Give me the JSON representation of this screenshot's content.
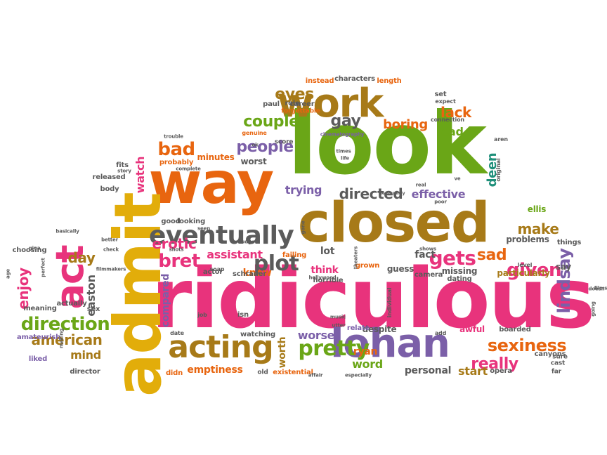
{
  "palette": {
    "orange": "#e8650f",
    "green": "#6aa617",
    "pink": "#e8337c",
    "purple": "#7b5fa8",
    "gold": "#e2ad0a",
    "brown": "#a77a18",
    "grey": "#5b5b5b",
    "teal": "#1f8f7a",
    "red": "#c9341c"
  },
  "words": [
    {
      "text": "ridiculous",
      "color": "pink",
      "size": 118,
      "rot": 0
    },
    {
      "text": "look",
      "color": "green",
      "size": 122,
      "rot": 0
    },
    {
      "text": "closed",
      "color": "brown",
      "size": 78,
      "rot": 0
    },
    {
      "text": "way",
      "color": "orange",
      "size": 82,
      "rot": 0
    },
    {
      "text": "admit",
      "color": "gold",
      "size": 92,
      "rot": -90
    },
    {
      "text": "work",
      "color": "brown",
      "size": 56,
      "rot": 0
    },
    {
      "text": "lohan",
      "color": "purple",
      "size": 56,
      "rot": 0
    },
    {
      "text": "acting",
      "color": "brown",
      "size": 44,
      "rot": 0
    },
    {
      "text": "act",
      "color": "pink",
      "size": 54,
      "rot": -90
    },
    {
      "text": "eventually",
      "color": "grey",
      "size": 36,
      "rot": 0
    },
    {
      "text": "pretty",
      "color": "green",
      "size": 30,
      "rot": 0
    },
    {
      "text": "direction",
      "color": "green",
      "size": 26,
      "rot": 0
    },
    {
      "text": "sexiness",
      "color": "orange",
      "size": 24,
      "rot": 0
    },
    {
      "text": "lindsay",
      "color": "purple",
      "size": 24,
      "rot": -90
    },
    {
      "text": "plot",
      "color": "grey",
      "size": 30,
      "rot": 0
    },
    {
      "text": "bret",
      "color": "pink",
      "size": 26,
      "rot": 0
    },
    {
      "text": "gets",
      "color": "pink",
      "size": 28,
      "rot": 0
    },
    {
      "text": "given",
      "color": "pink",
      "size": 26,
      "rot": 0
    },
    {
      "text": "directed",
      "color": "grey",
      "size": 20,
      "rot": 0
    },
    {
      "text": "people",
      "color": "purple",
      "size": 22,
      "rot": 0
    },
    {
      "text": "couple",
      "color": "green",
      "size": 22,
      "rot": 0
    },
    {
      "text": "bad",
      "color": "orange",
      "size": 26,
      "rot": 0
    },
    {
      "text": "gay",
      "color": "grey",
      "size": 22,
      "rot": 0
    },
    {
      "text": "eyes",
      "color": "brown",
      "size": 22,
      "rot": 0
    },
    {
      "text": "boring",
      "color": "orange",
      "size": 18,
      "rot": 0
    },
    {
      "text": "lack",
      "color": "orange",
      "size": 20,
      "rot": 0
    },
    {
      "text": "lead",
      "color": "green",
      "size": 16,
      "rot": 0
    },
    {
      "text": "make",
      "color": "brown",
      "size": 20,
      "rot": 0
    },
    {
      "text": "sad",
      "color": "orange",
      "size": 22,
      "rot": 0
    },
    {
      "text": "really",
      "color": "pink",
      "size": 22,
      "rot": 0
    },
    {
      "text": "american",
      "color": "brown",
      "size": 20,
      "rot": 0
    },
    {
      "text": "enjoy",
      "color": "pink",
      "size": 20,
      "rot": -90
    },
    {
      "text": "day",
      "color": "brown",
      "size": 20,
      "rot": 0
    },
    {
      "text": "erotic",
      "color": "pink",
      "size": 20,
      "rot": 0
    },
    {
      "text": "assistant",
      "color": "pink",
      "size": 16,
      "rot": 0
    },
    {
      "text": "trying",
      "color": "purple",
      "size": 16,
      "rot": 0
    },
    {
      "text": "effective",
      "color": "purple",
      "size": 16,
      "rot": 0
    },
    {
      "text": "deen",
      "color": "teal",
      "size": 18,
      "rot": -90
    },
    {
      "text": "worse",
      "color": "purple",
      "size": 16,
      "rot": 0
    },
    {
      "text": "word",
      "color": "green",
      "size": 16,
      "rot": 0
    },
    {
      "text": "start",
      "color": "brown",
      "size": 16,
      "rot": 0
    },
    {
      "text": "fact",
      "color": "grey",
      "size": 14,
      "rot": 0
    },
    {
      "text": "lot",
      "color": "grey",
      "size": 14,
      "rot": 0
    },
    {
      "text": "think",
      "color": "pink",
      "size": 14,
      "rot": 0
    },
    {
      "text": "know",
      "color": "orange",
      "size": 14,
      "rot": 0
    },
    {
      "text": "mind",
      "color": "brown",
      "size": 16,
      "rot": 0
    },
    {
      "text": "easton",
      "color": "grey",
      "size": 16,
      "rot": -90
    },
    {
      "text": "watch",
      "color": "pink",
      "size": 16,
      "rot": -90
    },
    {
      "text": "worth",
      "color": "brown",
      "size": 14,
      "rot": -90
    },
    {
      "text": "compared",
      "color": "purple",
      "size": 14,
      "rot": -90
    },
    {
      "text": "emptiness",
      "color": "orange",
      "size": 14,
      "rot": 0
    },
    {
      "text": "ryan",
      "color": "orange",
      "size": 14,
      "rot": 0
    },
    {
      "text": "personal",
      "color": "grey",
      "size": 14,
      "rot": 0
    },
    {
      "text": "problems",
      "color": "grey",
      "size": 12,
      "rot": 0
    },
    {
      "text": "particularly",
      "color": "brown",
      "size": 12,
      "rot": 0
    },
    {
      "text": "guess",
      "color": "grey",
      "size": 12,
      "rot": 0
    },
    {
      "text": "missing",
      "color": "grey",
      "size": 12,
      "rot": 0
    },
    {
      "text": "minutes",
      "color": "orange",
      "size": 12,
      "rot": 0
    },
    {
      "text": "worst",
      "color": "grey",
      "size": 12,
      "rot": 0
    },
    {
      "text": "ellis",
      "color": "green",
      "size": 12,
      "rot": 0
    },
    {
      "text": "things",
      "color": "grey",
      "size": 10,
      "rot": 0
    },
    {
      "text": "say",
      "color": "grey",
      "size": 12,
      "rot": 0
    },
    {
      "text": "despite",
      "color": "grey",
      "size": 12,
      "rot": 0
    },
    {
      "text": "awful",
      "color": "pink",
      "size": 12,
      "rot": 0
    },
    {
      "text": "boarded",
      "color": "grey",
      "size": 10,
      "rot": 0
    },
    {
      "text": "canyons",
      "color": "grey",
      "size": 10,
      "rot": 0
    },
    {
      "text": "opera",
      "color": "grey",
      "size": 10,
      "rot": 0
    },
    {
      "text": "watching",
      "color": "grey",
      "size": 10,
      "rot": 0
    },
    {
      "text": "existential",
      "color": "orange",
      "size": 10,
      "rot": 0
    },
    {
      "text": "schrader",
      "color": "grey",
      "size": 10,
      "rot": 0
    },
    {
      "text": "actor",
      "color": "grey",
      "size": 10,
      "rot": 0
    },
    {
      "text": "failing",
      "color": "orange",
      "size": 10,
      "rot": 0
    },
    {
      "text": "released",
      "color": "grey",
      "size": 10,
      "rot": 0
    },
    {
      "text": "probably",
      "color": "orange",
      "size": 10,
      "rot": 0
    },
    {
      "text": "body",
      "color": "grey",
      "size": 10,
      "rot": 0
    },
    {
      "text": "fits",
      "color": "grey",
      "size": 10,
      "rot": 0
    },
    {
      "text": "good",
      "color": "grey",
      "size": 10,
      "rot": 0
    },
    {
      "text": "looking",
      "color": "grey",
      "size": 10,
      "rot": 0
    },
    {
      "text": "actually",
      "color": "grey",
      "size": 10,
      "rot": 0
    },
    {
      "text": "sex",
      "color": "grey",
      "size": 10,
      "rot": 0
    },
    {
      "text": "meaning",
      "color": "grey",
      "size": 10,
      "rot": 0
    },
    {
      "text": "choosing",
      "color": "grey",
      "size": 10,
      "rot": 0
    },
    {
      "text": "amateurish",
      "color": "purple",
      "size": 10,
      "rot": 0
    },
    {
      "text": "liked",
      "color": "purple",
      "size": 10,
      "rot": 0
    },
    {
      "text": "director",
      "color": "grey",
      "size": 10,
      "rot": 0
    },
    {
      "text": "didn",
      "color": "orange",
      "size": 10,
      "rot": 0
    },
    {
      "text": "old",
      "color": "grey",
      "size": 9,
      "rot": 0
    },
    {
      "text": "camera",
      "color": "grey",
      "size": 10,
      "rot": 0
    },
    {
      "text": "dating",
      "color": "grey",
      "size": 10,
      "rot": 0
    },
    {
      "text": "horrible",
      "color": "grey",
      "size": 10,
      "rot": 0
    },
    {
      "text": "grown",
      "color": "orange",
      "size": 10,
      "rot": 0
    },
    {
      "text": "relate",
      "color": "purple",
      "size": 10,
      "rot": 0
    },
    {
      "text": "isn",
      "color": "grey",
      "size": 10,
      "rot": 0
    },
    {
      "text": "role",
      "color": "grey",
      "size": 10,
      "rot": 0
    },
    {
      "text": "paul",
      "color": "grey",
      "size": 10,
      "rot": 0
    },
    {
      "text": "career",
      "color": "grey",
      "size": 10,
      "rot": 0
    },
    {
      "text": "forgettable",
      "color": "orange",
      "size": 9,
      "rot": 0
    },
    {
      "text": "instead",
      "color": "orange",
      "size": 10,
      "rot": 0
    },
    {
      "text": "characters",
      "color": "grey",
      "size": 10,
      "rot": 0
    },
    {
      "text": "length",
      "color": "orange",
      "size": 10,
      "rot": 0
    },
    {
      "text": "set",
      "color": "grey",
      "size": 10,
      "rot": 0
    },
    {
      "text": "expect",
      "color": "grey",
      "size": 8,
      "rot": 0
    },
    {
      "text": "connection",
      "color": "grey",
      "size": 8,
      "rot": 0
    },
    {
      "text": "genuine",
      "color": "orange",
      "size": 8,
      "rot": 0
    },
    {
      "text": "score",
      "color": "grey",
      "size": 9,
      "rot": 0
    },
    {
      "text": "cinematography",
      "color": "purple",
      "size": 7,
      "rot": 0
    },
    {
      "text": "original",
      "color": "grey",
      "size": 8,
      "rot": -90
    },
    {
      "text": "aren",
      "color": "grey",
      "size": 8,
      "rot": 0
    },
    {
      "text": "sure",
      "color": "grey",
      "size": 9,
      "rot": 0
    },
    {
      "text": "cast",
      "color": "grey",
      "size": 9,
      "rot": 0
    },
    {
      "text": "far",
      "color": "grey",
      "size": 9,
      "rot": 0
    },
    {
      "text": "level",
      "color": "grey",
      "size": 8,
      "rot": 0
    },
    {
      "text": "individual",
      "color": "grey",
      "size": 8,
      "rot": -90
    },
    {
      "text": "add",
      "color": "grey",
      "size": 8,
      "rot": 0
    },
    {
      "text": "date",
      "color": "grey",
      "size": 8,
      "rot": 0
    },
    {
      "text": "job",
      "color": "grey",
      "size": 8,
      "rot": 0
    },
    {
      "text": "soap",
      "color": "grey",
      "size": 8,
      "rot": 0
    },
    {
      "text": "shows",
      "color": "grey",
      "size": 7,
      "rot": 0
    },
    {
      "text": "music",
      "color": "grey",
      "size": 7,
      "rot": 0
    },
    {
      "text": "affair",
      "color": "grey",
      "size": 7,
      "rot": 0
    },
    {
      "text": "especially",
      "color": "grey",
      "size": 7,
      "rot": 0
    },
    {
      "text": "hollywood",
      "color": "grey",
      "size": 7,
      "rot": 0
    },
    {
      "text": "theaters",
      "color": "grey",
      "size": 7,
      "rot": -90
    },
    {
      "text": "poor",
      "color": "grey",
      "size": 7,
      "rot": 0
    },
    {
      "text": "real",
      "color": "grey",
      "size": 7,
      "rot": 0
    },
    {
      "text": "times",
      "color": "grey",
      "size": 7,
      "rot": 0
    },
    {
      "text": "life",
      "color": "grey",
      "size": 7,
      "rot": 0
    },
    {
      "text": "ve",
      "color": "grey",
      "size": 7,
      "rot": 0
    },
    {
      "text": "necessarily",
      "color": "grey",
      "size": 6,
      "rot": 0
    },
    {
      "text": "budget",
      "color": "grey",
      "size": 7,
      "rot": 0
    },
    {
      "text": "ok",
      "color": "grey",
      "size": 7,
      "rot": 0
    },
    {
      "text": "trouble",
      "color": "grey",
      "size": 7,
      "rot": 0
    },
    {
      "text": "story",
      "color": "grey",
      "size": 7,
      "rot": 0
    },
    {
      "text": "complete",
      "color": "grey",
      "size": 7,
      "rot": 0
    },
    {
      "text": "seen",
      "color": "grey",
      "size": 7,
      "rot": 0
    },
    {
      "text": "shots",
      "color": "grey",
      "size": 7,
      "rot": 0
    },
    {
      "text": "better",
      "color": "grey",
      "size": 7,
      "rot": 0
    },
    {
      "text": "check",
      "color": "grey",
      "size": 7,
      "rot": 0
    },
    {
      "text": "gina",
      "color": "grey",
      "size": 7,
      "rot": 0
    },
    {
      "text": "basically",
      "color": "grey",
      "size": 7,
      "rot": 0
    },
    {
      "text": "filmmakers",
      "color": "grey",
      "size": 7,
      "rot": 0
    },
    {
      "text": "perfect",
      "color": "grey",
      "size": 7,
      "rot": -90
    },
    {
      "text": "age",
      "color": "grey",
      "size": 7,
      "rot": -90
    },
    {
      "text": "making",
      "color": "grey",
      "size": 7,
      "rot": -90
    },
    {
      "text": "utter",
      "color": "grey",
      "size": 7,
      "rot": 0
    },
    {
      "text": "doesn",
      "color": "grey",
      "size": 7,
      "rot": 0
    },
    {
      "text": "films",
      "color": "grey",
      "size": 7,
      "rot": 0
    },
    {
      "text": "going",
      "color": "grey",
      "size": 7,
      "rot": -90
    },
    {
      "text": "gone",
      "color": "grey",
      "size": 7,
      "rot": -90
    }
  ]
}
